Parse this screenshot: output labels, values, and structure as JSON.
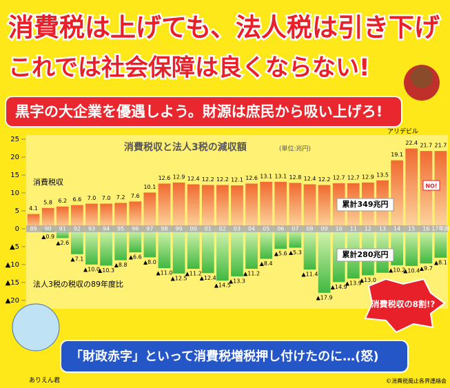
{
  "header": {
    "title_line1": "消費税は上げても、法人税は引き下げ",
    "title_line2": "これでは社会保障は良くならない!",
    "callout": "黒字の大企業を優遇しよう。財源は庶民から吸い上げろ!"
  },
  "footer": {
    "message": "「財政赤字」といって消費税増税押し付けたのに…(怒)",
    "character_left": "ありえん君",
    "character_right": "アリデビル",
    "sign": "NO!",
    "credit": "©消費税廃止各界連絡会"
  },
  "chart_data": {
    "type": "bar",
    "title": "消費税収と法人3税の減収額",
    "subtitle": "(単位:兆円)",
    "categories": [
      "89",
      "90",
      "91",
      "92",
      "93",
      "94",
      "95",
      "96",
      "97",
      "98",
      "99",
      "00",
      "01",
      "02",
      "03",
      "04",
      "05",
      "06",
      "07",
      "08",
      "09",
      "10",
      "11",
      "12",
      "13",
      "14",
      "15",
      "16",
      "17年度"
    ],
    "series": [
      {
        "name": "消費税収",
        "color": "#f27a3c",
        "values": [
          4.1,
          5.8,
          6.2,
          6.6,
          7.0,
          7.0,
          7.2,
          7.6,
          10.1,
          12.6,
          12.9,
          12.4,
          12.2,
          12.2,
          12.1,
          12.6,
          13.1,
          13.1,
          12.8,
          12.4,
          12.2,
          12.7,
          12.7,
          12.9,
          13.5,
          19.1,
          22.4,
          21.7,
          21.7
        ],
        "value_labels": [
          "4.1",
          "5.8",
          "6.2",
          "6.6",
          "7.0",
          "7.0",
          "7.2",
          "7.6",
          "10.1",
          "12.6",
          "12.9",
          "12.4",
          "12.2",
          "12.2",
          "12.1",
          "12.6",
          "13.1",
          "13.1",
          "12.8",
          "12.4",
          "12.2",
          "12.7",
          "12.7",
          "12.9",
          "13.5",
          "19.1",
          "22.4",
          "21.7",
          "21.7"
        ]
      },
      {
        "name": "法人3税の税収の89年度比",
        "color": "#4cc04c",
        "values": [
          0,
          -0.9,
          -2.6,
          -7.1,
          -10.0,
          -10.3,
          -8.8,
          -6.6,
          -8.0,
          -11.0,
          -12.5,
          -11.2,
          -12.4,
          -14.5,
          -13.3,
          -11.2,
          -8.4,
          -5.6,
          -5.3,
          -11.4,
          -17.9,
          -14.9,
          -13.9,
          -13.0,
          -12.3,
          -10.2,
          -10.4,
          -9.7,
          -8.1
        ],
        "value_labels": [
          null,
          "▲0.9",
          "▲2.6",
          "▲7.1",
          "▲10.0",
          "▲10.3",
          "▲8.8",
          "▲6.6",
          "▲8.0",
          "▲11.0",
          "▲12.5",
          "▲11.2",
          "▲12.4",
          "▲14.5",
          "▲13.3",
          "▲11.2",
          "▲8.4",
          "▲5.6",
          "▲5.3",
          "▲11.4",
          "▲17.9",
          "▲14.9",
          "▲13.9",
          "▲13.0",
          null,
          "▲10.2",
          "▲10.4",
          "▲9.7",
          "▲8.1"
        ]
      }
    ],
    "ylim": [
      -21,
      25
    ],
    "yticks": [
      {
        "value": -20,
        "label": "▲20"
      },
      {
        "value": -15,
        "label": "▲15"
      },
      {
        "value": -10,
        "label": "▲10"
      },
      {
        "value": -5,
        "label": "▲5"
      },
      0,
      5,
      10,
      15,
      20,
      25
    ],
    "annotations": [
      "累計349兆円",
      "累計280兆円",
      "消費税収の8割!?"
    ]
  }
}
